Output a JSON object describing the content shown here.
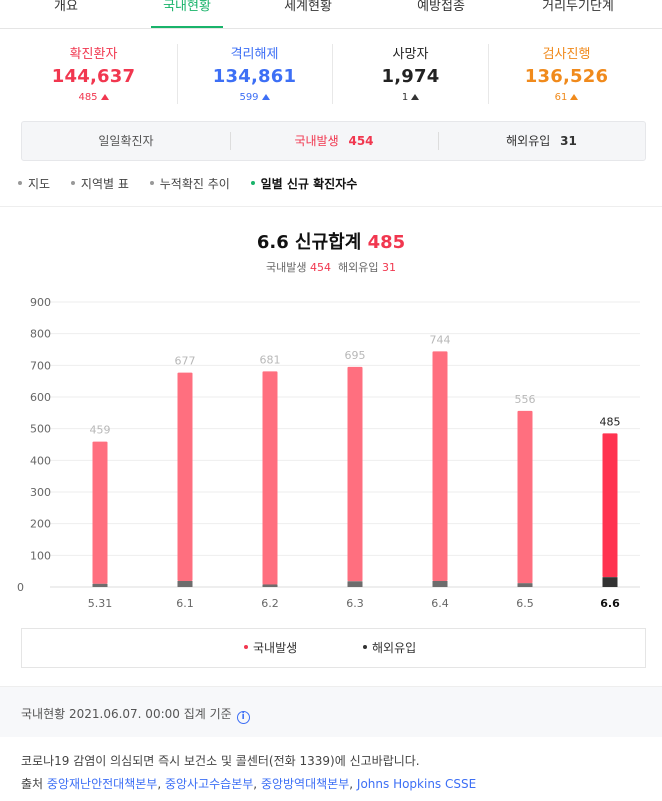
{
  "tabs": [
    {
      "label": "개요",
      "active": false
    },
    {
      "label": "국내현황",
      "active": true
    },
    {
      "label": "세계현황",
      "active": false
    },
    {
      "label": "예방접종",
      "active": false
    },
    {
      "label": "거리두기단계",
      "active": false
    }
  ],
  "stats": [
    {
      "label": "확진환자",
      "value": "144,637",
      "delta": "485",
      "color": "#f1374f",
      "delta_color": "#f1374f"
    },
    {
      "label": "격리해제",
      "value": "134,861",
      "delta": "599",
      "color": "#3d6ff5",
      "delta_color": "#3d6ff5"
    },
    {
      "label": "사망자",
      "value": "1,974",
      "delta": "1",
      "color": "#222222",
      "delta_color": "#333333"
    },
    {
      "label": "검사진행",
      "value": "136,526",
      "delta": "61",
      "color": "#f08a1c",
      "delta_color": "#f08a1c"
    }
  ],
  "subtabs": {
    "daily": "일일확진자",
    "domestic_label": "국내발생",
    "domestic_value": "454",
    "overseas_label": "해외유입",
    "overseas_value": "31"
  },
  "nav": [
    "지도",
    "지역별 표",
    "누적확진 추이",
    "일별 신규 확진자수"
  ],
  "chart_header": {
    "date": "6.6",
    "title": "신규합계",
    "total": "485",
    "domestic_label": "국내발생",
    "domestic_value": "454",
    "overseas_label": "해외유입",
    "overseas_value": "31"
  },
  "chart_data": {
    "type": "bar",
    "categories": [
      "5.31",
      "6.1",
      "6.2",
      "6.3",
      "6.4",
      "6.5",
      "6.6"
    ],
    "series": [
      {
        "name": "국내발생",
        "values": [
          449,
          658,
          673,
          677,
          725,
          544,
          454
        ]
      },
      {
        "name": "해외유입",
        "values": [
          10,
          19,
          8,
          18,
          19,
          12,
          31
        ]
      }
    ],
    "totals": [
      459,
      677,
      681,
      695,
      744,
      556,
      485
    ],
    "yticks": [
      0,
      100,
      200,
      300,
      400,
      500,
      600,
      700,
      800,
      900
    ],
    "ylim": [
      0,
      900
    ],
    "stacked": true,
    "highlight_index": 6,
    "colors": {
      "domestic": "#ff6f7f",
      "overseas": "#6d6d6d",
      "highlight_domestic": "#ff3350",
      "highlight_overseas": "#333333"
    }
  },
  "legend": [
    {
      "label": "국내발생",
      "color": "#f1374f"
    },
    {
      "label": "해외유입",
      "color": "#333333"
    }
  ],
  "footer": {
    "basis": "국내현황 2021.06.07. 00:00 집계 기준",
    "info_icon": "i",
    "notice": "코로나19 감염이 의심되면 즉시 보건소 및 콜센터(전화 1339)에 신고바랍니다.",
    "source_prefix": "출처",
    "sources": [
      "중앙재난안전대책본부",
      "중앙사고수습본부",
      "중앙방역대책본부",
      "Johns Hopkins CSSE"
    ]
  }
}
